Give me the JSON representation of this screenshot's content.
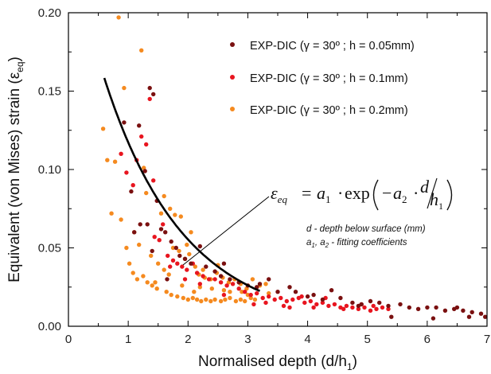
{
  "chart_data": {
    "type": "scatter",
    "xlabel": "Normalised depth (d/h",
    "xlabel_sub": "1",
    "xlabel_close": ")",
    "ylabel": "Equivalent (von Mises) strain (ε",
    "ylabel_sub": "eq",
    "ylabel_close": ")",
    "xlim": [
      0,
      7
    ],
    "ylim": [
      0,
      0.2
    ],
    "xticks": [
      "0",
      "1",
      "2",
      "3",
      "4",
      "5",
      "6",
      "7"
    ],
    "yticks": [
      "0.00",
      "0.05",
      "0.10",
      "0.15",
      "0.20"
    ],
    "legend_position": "top-right",
    "series": [
      {
        "name": "EXP-DIC (γ = 30º ; h = 0.05mm)",
        "color": "#7a1010",
        "points": [
          [
            0.93,
            0.13
          ],
          [
            1.05,
            0.086
          ],
          [
            1.18,
            0.128
          ],
          [
            1.28,
            0.099
          ],
          [
            1.36,
            0.152
          ],
          [
            1.42,
            0.148
          ],
          [
            1.48,
            0.08
          ],
          [
            1.32,
            0.065
          ],
          [
            1.55,
            0.062
          ],
          [
            1.62,
            0.06
          ],
          [
            1.72,
            0.054
          ],
          [
            1.8,
            0.05
          ],
          [
            1.86,
            0.045
          ],
          [
            1.95,
            0.043
          ],
          [
            2.05,
            0.04
          ],
          [
            2.2,
            0.051
          ],
          [
            2.3,
            0.038
          ],
          [
            2.45,
            0.035
          ],
          [
            2.55,
            0.032
          ],
          [
            2.7,
            0.03
          ],
          [
            2.85,
            0.028
          ],
          [
            3.0,
            0.026
          ],
          [
            3.15,
            0.025
          ],
          [
            3.35,
            0.03
          ],
          [
            3.5,
            0.022
          ],
          [
            3.7,
            0.025
          ],
          [
            3.8,
            0.022
          ],
          [
            4.1,
            0.02
          ],
          [
            4.25,
            0.017
          ],
          [
            4.4,
            0.023
          ],
          [
            4.55,
            0.018
          ],
          [
            4.75,
            0.015
          ],
          [
            4.9,
            0.014
          ],
          [
            5.05,
            0.016
          ],
          [
            5.2,
            0.015
          ],
          [
            5.35,
            0.013
          ],
          [
            5.55,
            0.014
          ],
          [
            5.7,
            0.012
          ],
          [
            5.85,
            0.011
          ],
          [
            6.0,
            0.012
          ],
          [
            6.15,
            0.012
          ],
          [
            6.3,
            0.01
          ],
          [
            6.45,
            0.011
          ],
          [
            6.6,
            0.01
          ],
          [
            6.75,
            0.009
          ],
          [
            6.9,
            0.008
          ],
          [
            6.97,
            0.006
          ],
          [
            5.4,
            0.006
          ],
          [
            6.7,
            0.006
          ],
          [
            6.1,
            0.005
          ],
          [
            1.4,
            0.048
          ],
          [
            1.65,
            0.03
          ],
          [
            1.2,
            0.065
          ],
          [
            1.1,
            0.06
          ],
          [
            2.6,
            0.04
          ],
          [
            3.2,
            0.027
          ],
          [
            4.0,
            0.019
          ],
          [
            4.85,
            0.013
          ],
          [
            6.5,
            0.012
          ]
        ]
      },
      {
        "name": "EXP-DIC (γ = 30º ; h = 0.1mm)",
        "color": "#e8151f",
        "points": [
          [
            0.88,
            0.11
          ],
          [
            0.97,
            0.098
          ],
          [
            1.08,
            0.09
          ],
          [
            1.14,
            0.106
          ],
          [
            1.22,
            0.121
          ],
          [
            1.3,
            0.116
          ],
          [
            1.36,
            0.145
          ],
          [
            1.42,
            0.093
          ],
          [
            1.44,
            0.057
          ],
          [
            1.52,
            0.055
          ],
          [
            1.58,
            0.065
          ],
          [
            1.66,
            0.045
          ],
          [
            1.75,
            0.042
          ],
          [
            1.82,
            0.04
          ],
          [
            1.9,
            0.038
          ],
          [
            1.98,
            0.036
          ],
          [
            2.08,
            0.04
          ],
          [
            2.15,
            0.034
          ],
          [
            2.25,
            0.032
          ],
          [
            2.35,
            0.03
          ],
          [
            2.45,
            0.03
          ],
          [
            2.55,
            0.028
          ],
          [
            2.65,
            0.026
          ],
          [
            2.75,
            0.027
          ],
          [
            2.85,
            0.024
          ],
          [
            2.95,
            0.022
          ],
          [
            3.05,
            0.02
          ],
          [
            3.15,
            0.021
          ],
          [
            3.25,
            0.018
          ],
          [
            3.35,
            0.019
          ],
          [
            3.45,
            0.017
          ],
          [
            3.55,
            0.018
          ],
          [
            3.65,
            0.016
          ],
          [
            3.75,
            0.017
          ],
          [
            3.85,
            0.018
          ],
          [
            3.95,
            0.015
          ],
          [
            4.05,
            0.016
          ],
          [
            4.15,
            0.014
          ],
          [
            4.25,
            0.015
          ],
          [
            4.35,
            0.013
          ],
          [
            4.45,
            0.014
          ],
          [
            4.55,
            0.012
          ],
          [
            4.65,
            0.013
          ],
          [
            4.75,
            0.012
          ],
          [
            4.85,
            0.011
          ],
          [
            4.95,
            0.012
          ],
          [
            5.05,
            0.01
          ],
          [
            5.15,
            0.011
          ],
          [
            5.25,
            0.012
          ],
          [
            5.35,
            0.011
          ],
          [
            3.1,
            0.014
          ],
          [
            3.6,
            0.013
          ],
          [
            4.1,
            0.012
          ],
          [
            4.6,
            0.011
          ],
          [
            5.1,
            0.013
          ],
          [
            3.9,
            0.019
          ],
          [
            3.3,
            0.015
          ],
          [
            2.6,
            0.02
          ],
          [
            2.2,
            0.027
          ],
          [
            1.95,
            0.03
          ],
          [
            1.7,
            0.038
          ],
          [
            3.7,
            0.012
          ],
          [
            4.3,
            0.018
          ],
          [
            4.9,
            0.014
          ]
        ]
      },
      {
        "name": "EXP-DIC (γ = 30º ; h = 0.2mm)",
        "color": "#f58a1f",
        "points": [
          [
            0.58,
            0.126
          ],
          [
            0.65,
            0.106
          ],
          [
            0.72,
            0.072
          ],
          [
            0.78,
            0.105
          ],
          [
            0.84,
            0.197
          ],
          [
            0.88,
            0.068
          ],
          [
            0.93,
            0.152
          ],
          [
            0.97,
            0.05
          ],
          [
            1.02,
            0.04
          ],
          [
            1.08,
            0.034
          ],
          [
            1.15,
            0.03
          ],
          [
            1.22,
            0.176
          ],
          [
            1.26,
            0.101
          ],
          [
            1.3,
            0.085
          ],
          [
            1.32,
            0.028
          ],
          [
            1.4,
            0.026
          ],
          [
            1.48,
            0.024
          ],
          [
            1.55,
            0.072
          ],
          [
            1.6,
            0.083
          ],
          [
            1.64,
            0.022
          ],
          [
            1.7,
            0.075
          ],
          [
            1.72,
            0.02
          ],
          [
            1.78,
            0.071
          ],
          [
            1.82,
            0.019
          ],
          [
            1.88,
            0.07
          ],
          [
            1.92,
            0.018
          ],
          [
            2.0,
            0.017
          ],
          [
            2.08,
            0.018
          ],
          [
            2.15,
            0.017
          ],
          [
            2.22,
            0.016
          ],
          [
            2.3,
            0.017
          ],
          [
            2.38,
            0.016
          ],
          [
            2.45,
            0.017
          ],
          [
            2.55,
            0.016
          ],
          [
            2.62,
            0.017
          ],
          [
            2.7,
            0.018
          ],
          [
            2.8,
            0.016
          ],
          [
            2.88,
            0.017
          ],
          [
            2.95,
            0.016
          ],
          [
            3.05,
            0.018
          ],
          [
            3.12,
            0.017
          ],
          [
            1.75,
            0.05
          ],
          [
            1.85,
            0.048
          ],
          [
            1.95,
            0.043
          ],
          [
            2.02,
            0.046
          ],
          [
            2.12,
            0.038
          ],
          [
            2.18,
            0.033
          ],
          [
            2.28,
            0.031
          ],
          [
            2.38,
            0.03
          ],
          [
            2.48,
            0.034
          ],
          [
            2.58,
            0.031
          ],
          [
            2.68,
            0.028
          ],
          [
            2.78,
            0.03
          ],
          [
            2.88,
            0.027
          ],
          [
            2.98,
            0.024
          ],
          [
            3.08,
            0.03
          ],
          [
            3.2,
            0.026
          ],
          [
            3.3,
            0.027
          ],
          [
            1.5,
            0.04
          ],
          [
            1.6,
            0.036
          ],
          [
            1.68,
            0.033
          ],
          [
            1.38,
            0.045
          ],
          [
            1.18,
            0.052
          ],
          [
            1.1,
            0.06
          ],
          [
            2.1,
            0.022
          ],
          [
            2.4,
            0.024
          ],
          [
            2.7,
            0.022
          ],
          [
            3.0,
            0.02
          ],
          [
            1.9,
            0.026
          ],
          [
            2.2,
            0.025
          ],
          [
            2.6,
            0.023
          ],
          [
            2.9,
            0.022
          ],
          [
            3.35,
            0.021
          ],
          [
            1.25,
            0.032
          ],
          [
            1.45,
            0.028
          ],
          [
            1.98,
            0.052
          ],
          [
            2.05,
            0.06
          ],
          [
            2.25,
            0.036
          ],
          [
            2.5,
            0.039
          ]
        ]
      }
    ],
    "fit_curve": {
      "type": "exponential",
      "a1": 0.2485,
      "a2": 0.751,
      "x_range": [
        0.6,
        3.2
      ],
      "color": "#000000"
    },
    "annotation": {
      "equation_lhs": "ε",
      "equation_lhs_sub": "eq",
      "equation_eq": "=",
      "equation_a1": "a",
      "equation_a1_sub": "1",
      "equation_dot1": "·",
      "equation_exp": "exp",
      "equation_neg": "−",
      "equation_a2": "a",
      "equation_a2_sub": "2",
      "equation_dot2": "·",
      "equation_d": "d",
      "equation_h": "h",
      "equation_h_sub": "1",
      "note_line1": "d - depth below surface (mm)",
      "note_line2_a1": "a",
      "note_line2_a1_sub": "1",
      "note_line2_comma": ", ",
      "note_line2_a2": "a",
      "note_line2_a2_sub": "2",
      "note_line2_rest": " - fitting coefficients"
    }
  }
}
